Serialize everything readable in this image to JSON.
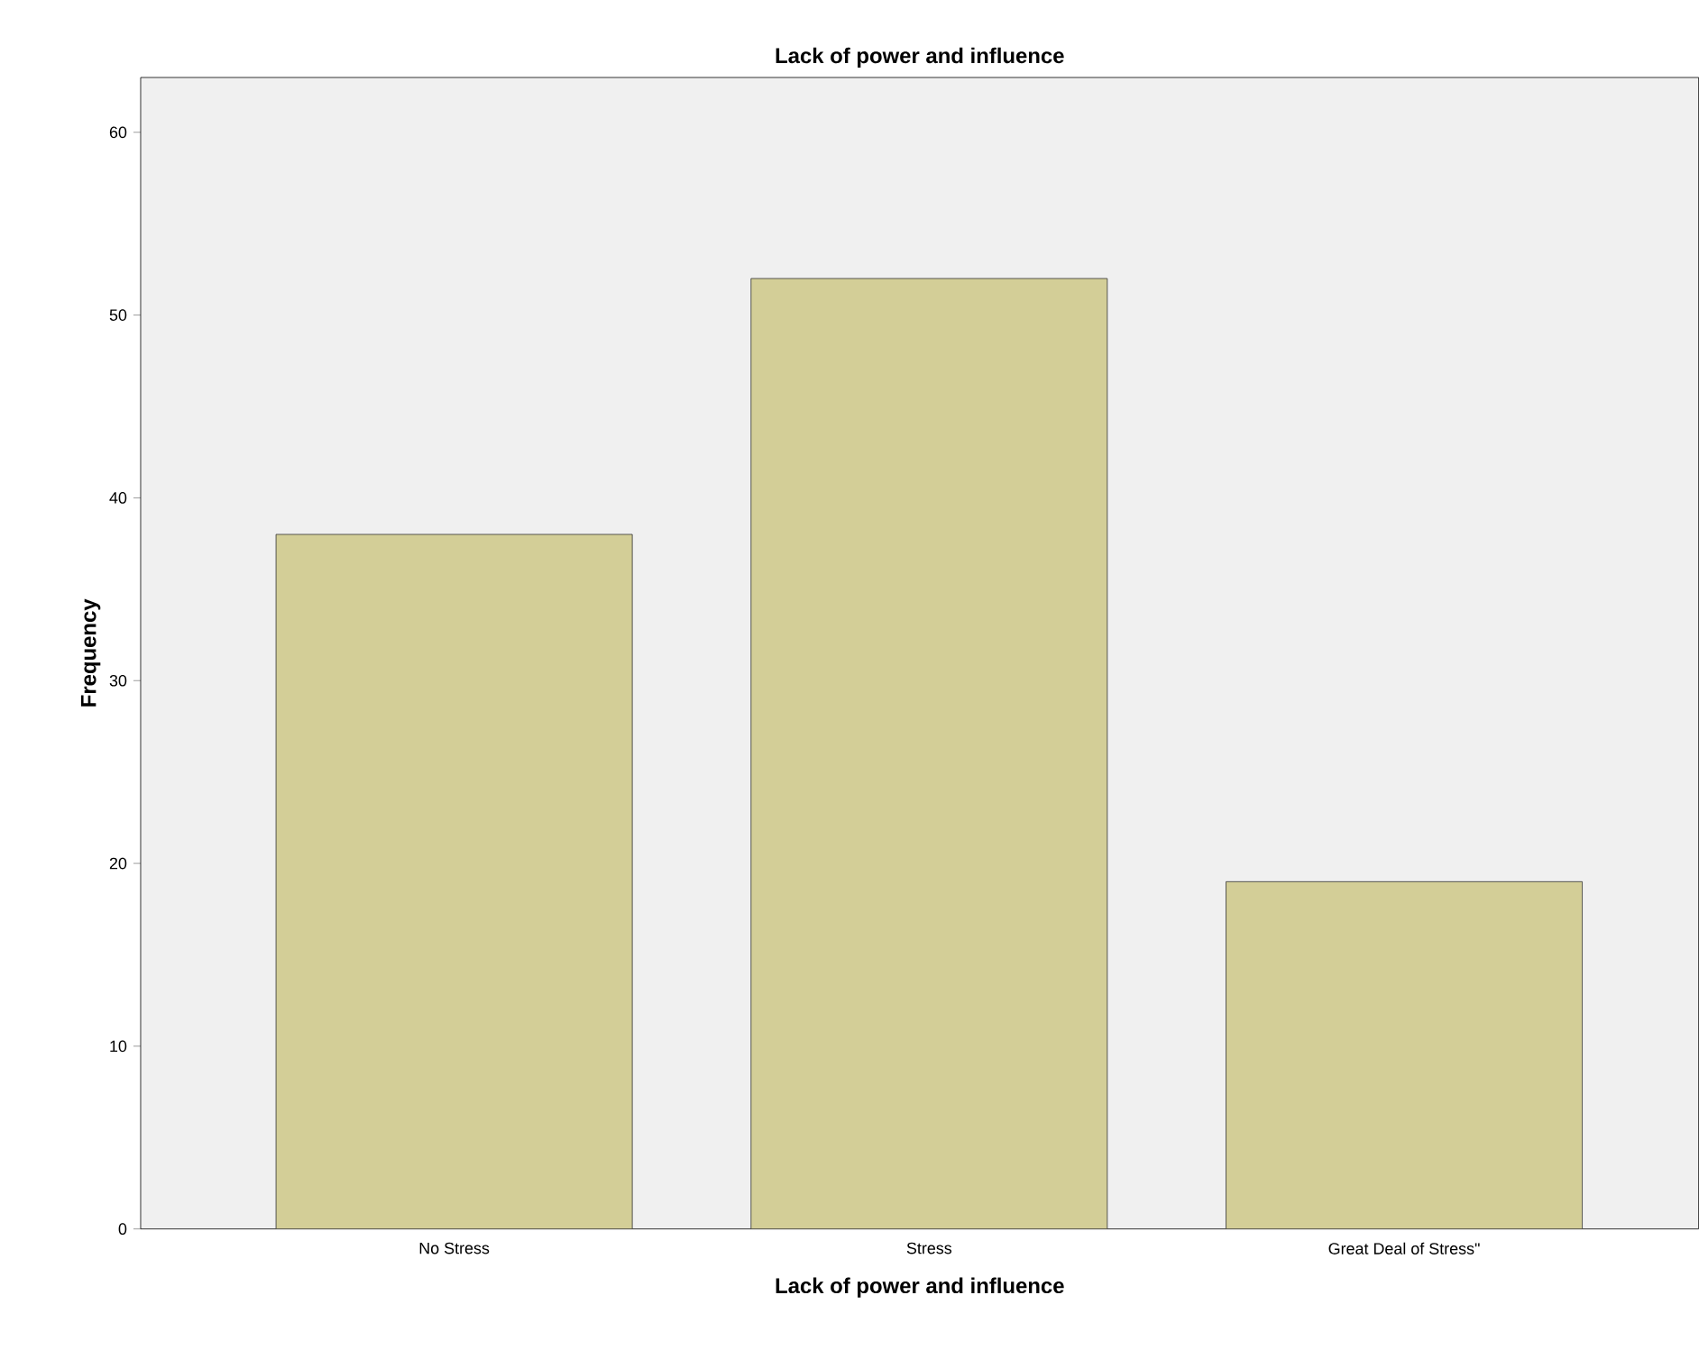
{
  "chart_data": {
    "type": "bar",
    "title": "Lack of power and influence",
    "xlabel": "Lack of power and influence",
    "ylabel": "Frequency",
    "categories": [
      "No Stress",
      "Stress",
      "Great Deal of Stress\""
    ],
    "values": [
      38,
      52,
      19
    ],
    "color": "#d3ce97",
    "ylim": [
      0,
      63
    ],
    "yticks": [
      0,
      10,
      20,
      30,
      40,
      50,
      60
    ],
    "grid": false
  }
}
